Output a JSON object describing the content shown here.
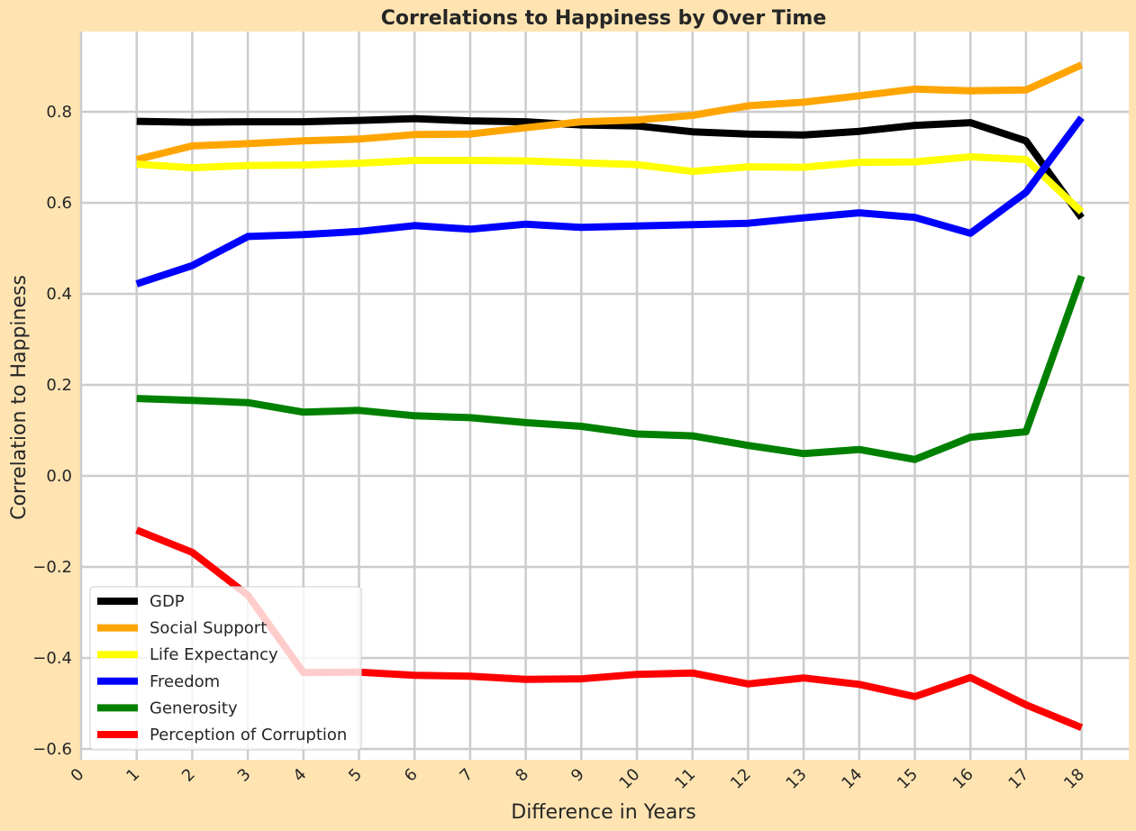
{
  "chart_data": {
    "type": "line",
    "title": "Correlations to Happiness by Over Time",
    "xlabel": "Difference in Years",
    "ylabel": "Correlation to Happiness",
    "xlim": [
      0,
      19
    ],
    "ylim": [
      -0.625,
      0.975
    ],
    "x_ticks": [
      "0",
      "1",
      "2",
      "3",
      "4",
      "5",
      "6",
      "7",
      "8",
      "9",
      "10",
      "11",
      "12",
      "13",
      "14",
      "15",
      "16",
      "17",
      "18"
    ],
    "y_ticks": [
      -0.6,
      -0.4,
      -0.2,
      0.0,
      0.2,
      0.4,
      0.6,
      0.8
    ],
    "y_tick_labels": [
      "−0.6",
      "−0.4",
      "−0.2",
      "0.0",
      "0.2",
      "0.4",
      "0.6",
      "0.8"
    ],
    "grid": true,
    "legend_position": "lower-left",
    "x": [
      1,
      2,
      3,
      4,
      5,
      6,
      7,
      8,
      9,
      10,
      11,
      12,
      13,
      14,
      15,
      16,
      17,
      18
    ],
    "series": [
      {
        "name": "GDP",
        "color": "#000000",
        "values": [
          0.779,
          0.777,
          0.778,
          0.778,
          0.781,
          0.785,
          0.78,
          0.778,
          0.771,
          0.769,
          0.756,
          0.751,
          0.749,
          0.757,
          0.77,
          0.776,
          0.736,
          0.567
        ]
      },
      {
        "name": "Social Support",
        "color": "#FFA500",
        "values": [
          0.695,
          0.725,
          0.73,
          0.736,
          0.74,
          0.75,
          0.751,
          0.765,
          0.778,
          0.782,
          0.792,
          0.813,
          0.821,
          0.835,
          0.85,
          0.846,
          0.848,
          0.903
        ]
      },
      {
        "name": "Life Expectancy",
        "color": "#FFFF00",
        "values": [
          0.685,
          0.677,
          0.682,
          0.683,
          0.687,
          0.693,
          0.693,
          0.692,
          0.688,
          0.684,
          0.669,
          0.679,
          0.678,
          0.689,
          0.69,
          0.701,
          0.695,
          0.58
        ]
      },
      {
        "name": "Freedom",
        "color": "#0000FF",
        "values": [
          0.422,
          0.462,
          0.526,
          0.53,
          0.537,
          0.55,
          0.542,
          0.553,
          0.546,
          0.549,
          0.552,
          0.555,
          0.567,
          0.578,
          0.568,
          0.533,
          0.623,
          0.787
        ]
      },
      {
        "name": "Generosity",
        "color": "#008000",
        "values": [
          0.17,
          0.166,
          0.161,
          0.14,
          0.144,
          0.132,
          0.128,
          0.117,
          0.109,
          0.092,
          0.088,
          0.067,
          0.049,
          0.058,
          0.036,
          0.085,
          0.097,
          0.439
        ]
      },
      {
        "name": "Perception of Corruption",
        "color": "#FF0000",
        "values": [
          -0.119,
          -0.168,
          -0.262,
          -0.432,
          -0.431,
          -0.438,
          -0.44,
          -0.447,
          -0.446,
          -0.436,
          -0.433,
          -0.457,
          -0.444,
          -0.458,
          -0.485,
          -0.443,
          -0.503,
          -0.553
        ]
      }
    ]
  }
}
